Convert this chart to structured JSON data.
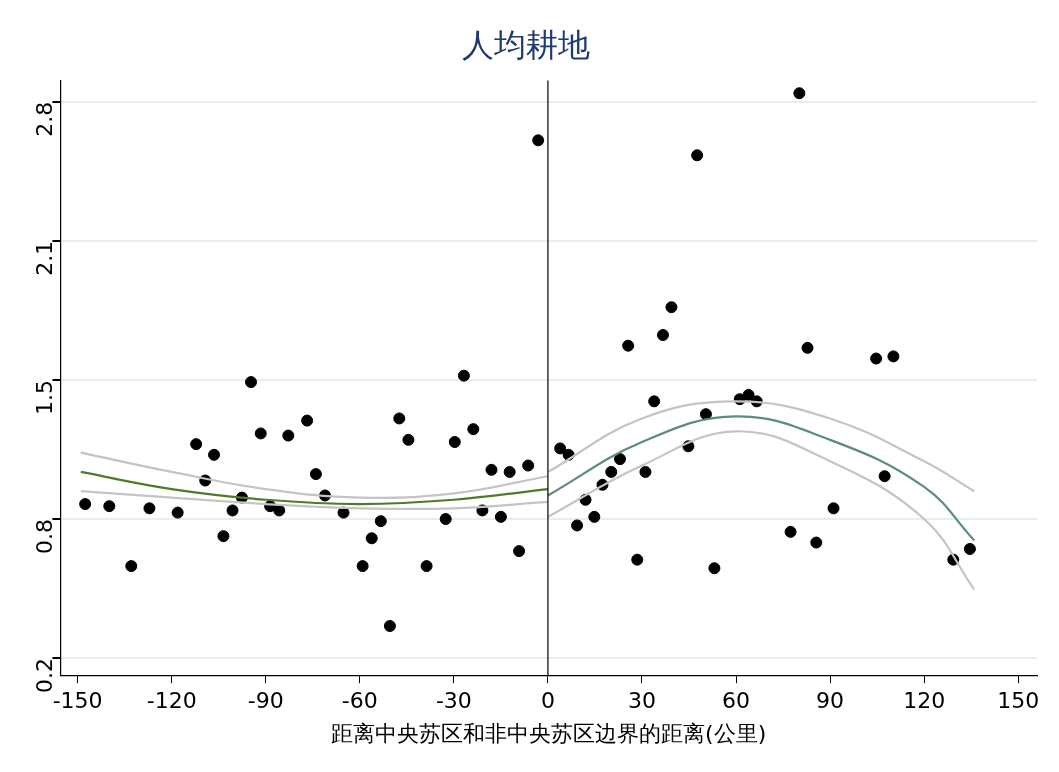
{
  "chart_data": {
    "type": "scatter",
    "title": "人均耕地",
    "xlabel": "距离中央苏区和非中央苏区边界的距离(公里)",
    "xlim": [
      -155.5,
      156
    ],
    "xticks": [
      -150,
      -120,
      -90,
      -60,
      -30,
      0,
      30,
      60,
      90,
      120,
      150
    ],
    "ylim": [
      0.12,
      2.9
    ],
    "yticks": [
      0.2,
      {
        "value": 0.85,
        "label": "0.8"
      },
      1.5,
      {
        "value": 2.15,
        "label": "2.1"
      },
      2.8
    ],
    "grid": "y",
    "legend": false,
    "ref_lines": [
      {
        "axis": "x",
        "value": 0,
        "color": "#000000"
      }
    ],
    "series": [
      {
        "color": "#000000",
        "marker": "circle",
        "x": [
          -147.6,
          -139.9,
          -132.9,
          -127.1,
          -118.1,
          -112.2,
          -109.3,
          -106.5,
          -103.5,
          -100.6,
          -97.6,
          -94.7,
          -91.6,
          -88.6,
          -85.7,
          -82.8,
          -76.8,
          -74.0,
          -71.1,
          -65.2,
          -59.1,
          -56.2,
          -53.3,
          -50.4,
          -47.4,
          -44.5,
          -38.7,
          -32.6,
          -29.7,
          -26.8,
          -23.8,
          -20.9,
          -18.0,
          -15.0,
          -12.2,
          -9.2,
          -6.3,
          -3.1,
          3.9,
          6.6,
          9.3,
          12.0,
          14.8,
          17.4,
          20.2,
          23.0,
          25.6,
          28.5,
          31.1,
          33.9,
          36.7,
          39.4,
          44.8,
          47.6,
          50.4,
          53.1,
          61.2,
          64.0,
          66.6,
          77.4,
          80.2,
          82.8,
          85.6,
          91.1,
          104.7,
          107.4,
          110.2,
          129.3,
          134.6
        ],
        "values": [
          0.92,
          0.91,
          0.63,
          0.9,
          0.88,
          1.2,
          1.03,
          1.15,
          0.77,
          0.89,
          0.95,
          1.49,
          1.25,
          0.91,
          0.89,
          1.24,
          1.31,
          1.06,
          0.96,
          0.88,
          0.63,
          0.76,
          0.84,
          0.35,
          1.32,
          1.22,
          0.63,
          0.85,
          1.21,
          1.52,
          1.27,
          0.89,
          1.08,
          0.86,
          1.07,
          0.7,
          1.1,
          2.62,
          1.18,
          1.15,
          0.82,
          0.94,
          0.86,
          1.01,
          1.07,
          1.13,
          1.66,
          0.66,
          1.07,
          1.4,
          1.71,
          1.84,
          1.19,
          2.55,
          1.34,
          0.62,
          1.41,
          1.43,
          1.4,
          0.79,
          2.84,
          1.65,
          0.74,
          0.9,
          1.6,
          1.05,
          1.61,
          0.66,
          0.71
        ]
      },
      {
        "type": "line",
        "color": "#c4c4c4",
        "marker": "none",
        "x": [
          -149,
          -120,
          -90,
          -60,
          -30,
          0
        ],
        "values": [
          1.16,
          1.07,
          0.99,
          0.95,
          0.97,
          1.05
        ]
      },
      {
        "type": "line",
        "color": "#c4c4c4",
        "marker": "none",
        "x": [
          -149,
          -120,
          -90,
          -60,
          -30,
          0
        ],
        "values": [
          0.98,
          0.95,
          0.92,
          0.9,
          0.9,
          0.93
        ]
      },
      {
        "type": "line",
        "color": "#4f7a28",
        "marker": "none",
        "x": [
          -149,
          -120,
          -90,
          -60,
          -30,
          0
        ],
        "values": [
          1.07,
          0.99,
          0.94,
          0.92,
          0.94,
          0.99
        ]
      },
      {
        "type": "line",
        "color": "#c4c4c4",
        "marker": "none",
        "x": [
          0,
          30,
          60,
          90,
          120,
          136
        ],
        "values": [
          1.07,
          1.32,
          1.4,
          1.32,
          1.12,
          0.98
        ]
      },
      {
        "type": "line",
        "color": "#c4c4c4",
        "marker": "none",
        "x": [
          0,
          30,
          60,
          90,
          120,
          136
        ],
        "values": [
          0.86,
          1.1,
          1.26,
          1.12,
          0.85,
          0.52
        ]
      },
      {
        "type": "line",
        "color": "#5e8b7c",
        "marker": "none",
        "x": [
          0,
          30,
          60,
          90,
          120,
          136
        ],
        "values": [
          0.96,
          1.21,
          1.33,
          1.22,
          1.0,
          0.75
        ]
      }
    ]
  }
}
